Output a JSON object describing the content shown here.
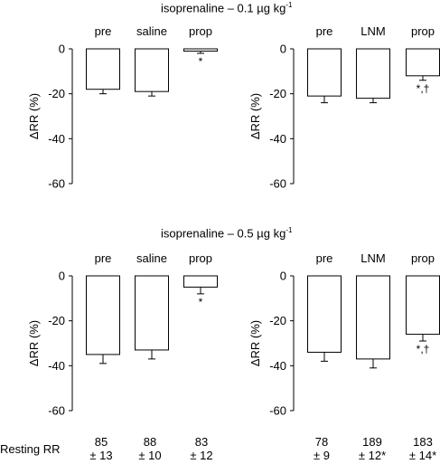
{
  "titles": {
    "top": "isoprenaline – 0.1 µg kg",
    "top_sup": "-1",
    "bottom": "isoprenaline – 0.5 µg kg",
    "bottom_sup": "-1"
  },
  "chart_data": [
    {
      "type": "bar",
      "panel": "top-left",
      "categories": [
        "pre",
        "saline",
        "prop"
      ],
      "series": [
        {
          "values": [
            -18,
            -19,
            -1
          ],
          "errors": [
            2,
            2,
            1
          ]
        }
      ],
      "annotations": [
        "",
        "",
        "*"
      ],
      "ylabel": "ΔRR (%)",
      "yticks": [
        0,
        -20,
        -40,
        -60
      ],
      "ylim": [
        -60,
        0
      ]
    },
    {
      "type": "bar",
      "panel": "top-right",
      "categories": [
        "pre",
        "LNM",
        "prop"
      ],
      "series": [
        {
          "values": [
            -21,
            -22,
            -12
          ],
          "errors": [
            3,
            2,
            2
          ]
        }
      ],
      "annotations": [
        "",
        "",
        "*,†"
      ],
      "ylabel": "ΔRR (%)",
      "yticks": [
        0,
        -20,
        -40,
        -60
      ],
      "ylim": [
        -60,
        0
      ]
    },
    {
      "type": "bar",
      "panel": "bottom-left",
      "categories": [
        "pre",
        "saline",
        "prop"
      ],
      "series": [
        {
          "values": [
            -35,
            -33,
            -5
          ],
          "errors": [
            4,
            4,
            3
          ]
        }
      ],
      "annotations": [
        "",
        "",
        "*"
      ],
      "ylabel": "ΔRR (%)",
      "yticks": [
        0,
        -20,
        -40,
        -60
      ],
      "ylim": [
        -60,
        0
      ]
    },
    {
      "type": "bar",
      "panel": "bottom-right",
      "categories": [
        "pre",
        "LNM",
        "prop"
      ],
      "series": [
        {
          "values": [
            -34,
            -37,
            -26
          ],
          "errors": [
            4,
            4,
            3
          ]
        }
      ],
      "annotations": [
        "",
        "",
        "*,†"
      ],
      "ylabel": "ΔRR (%)",
      "yticks": [
        0,
        -20,
        -40,
        -60
      ],
      "ylim": [
        -60,
        0
      ]
    }
  ],
  "resting_rr": {
    "label": "Resting RR",
    "left": [
      {
        "value": "85",
        "sem": "± 13"
      },
      {
        "value": "88",
        "sem": "± 10"
      },
      {
        "value": "83",
        "sem": "± 12"
      }
    ],
    "right": [
      {
        "value": "78",
        "sem": "± 9"
      },
      {
        "value": "189",
        "sem": "± 12*"
      },
      {
        "value": "183",
        "sem": "± 14*"
      }
    ]
  }
}
